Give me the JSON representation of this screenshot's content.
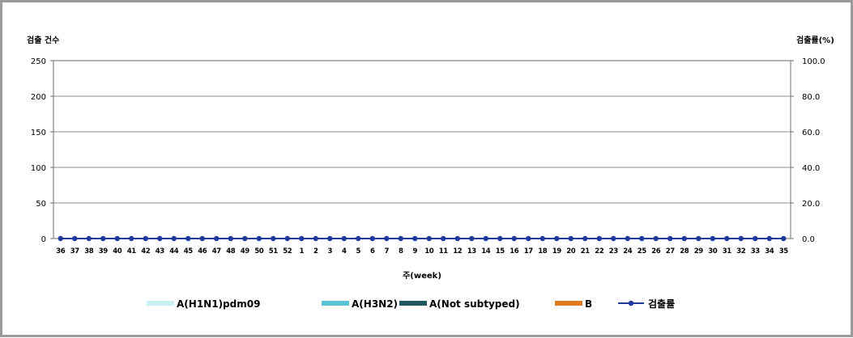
{
  "chart_data": {
    "type": "bar",
    "title": "",
    "ylabel_left": "검출 건수",
    "ylabel_right": "검출률(%)",
    "xlabel": "주(week)",
    "ylim_left": [
      0,
      250
    ],
    "ylim_right": [
      0,
      100
    ],
    "left_ticks": [
      "0",
      "50",
      "100",
      "150",
      "200",
      "250"
    ],
    "right_ticks": [
      "0.0",
      "20.0",
      "40.0",
      "60.0",
      "80.0",
      "100.0"
    ],
    "grid": true,
    "legend_position": "bottom",
    "categories": [
      "36",
      "37",
      "38",
      "39",
      "40",
      "41",
      "42",
      "43",
      "44",
      "45",
      "46",
      "47",
      "48",
      "49",
      "50",
      "51",
      "52",
      "1",
      "2",
      "3",
      "4",
      "5",
      "6",
      "7",
      "8",
      "9",
      "10",
      "11",
      "12",
      "13",
      "14",
      "15",
      "16",
      "17",
      "18",
      "19",
      "20",
      "21",
      "22",
      "23",
      "24",
      "25",
      "26",
      "27",
      "28",
      "29",
      "30",
      "31",
      "32",
      "33",
      "34",
      "35"
    ],
    "series": [
      {
        "name": "A(H1N1)pdm09",
        "kind": "bar",
        "axis": "left",
        "color": "#c9f0f2",
        "values": [
          0,
          0,
          0,
          0,
          0,
          0,
          0,
          0,
          0,
          0,
          0,
          0,
          0,
          0,
          0,
          0,
          0,
          0,
          0,
          0,
          0,
          0,
          0,
          0,
          0,
          0,
          0,
          0,
          0,
          0,
          0,
          0,
          0,
          0,
          0,
          0,
          0,
          0,
          0,
          0,
          0,
          0,
          0,
          0,
          0,
          0,
          0,
          0,
          0,
          0,
          0,
          0
        ]
      },
      {
        "name": "A(H3N2)",
        "kind": "bar",
        "axis": "left",
        "color": "#5bc3d6",
        "values": [
          0,
          0,
          0,
          0,
          0,
          0,
          0,
          0,
          0,
          0,
          0,
          0,
          0,
          0,
          0,
          0,
          0,
          0,
          0,
          0,
          0,
          0,
          0,
          0,
          0,
          0,
          0,
          0,
          0,
          0,
          0,
          0,
          0,
          0,
          0,
          0,
          0,
          0,
          0,
          0,
          0,
          0,
          0,
          0,
          0,
          0,
          0,
          0,
          0,
          0,
          0,
          0
        ]
      },
      {
        "name": "A(Not subtyped)",
        "kind": "bar",
        "axis": "left",
        "color": "#1f5661",
        "values": [
          0,
          0,
          0,
          0,
          0,
          0,
          0,
          0,
          0,
          0,
          0,
          0,
          0,
          0,
          0,
          0,
          0,
          0,
          0,
          0,
          0,
          0,
          0,
          0,
          0,
          0,
          0,
          0,
          0,
          0,
          0,
          0,
          0,
          0,
          0,
          0,
          0,
          0,
          0,
          0,
          0,
          0,
          0,
          0,
          0,
          0,
          0,
          0,
          0,
          0,
          0,
          0
        ]
      },
      {
        "name": "B",
        "kind": "bar",
        "axis": "left",
        "color": "#e07b22",
        "values": [
          0,
          0,
          0,
          0,
          0,
          0,
          0,
          0,
          0,
          0,
          0,
          0,
          0,
          0,
          0,
          0,
          0,
          0,
          0,
          0,
          0,
          0,
          0,
          0,
          0,
          0,
          0,
          0,
          0,
          0,
          0,
          0,
          0,
          0,
          0,
          0,
          0,
          0,
          0,
          0,
          0,
          0,
          0,
          0,
          0,
          0,
          0,
          0,
          0,
          0,
          0,
          0
        ]
      },
      {
        "name": "검출률",
        "kind": "line",
        "axis": "right",
        "color": "#1f3a9a",
        "values": [
          0,
          0,
          0,
          0,
          0,
          0,
          0,
          0,
          0,
          0,
          0,
          0,
          0,
          0,
          0,
          0,
          0,
          0,
          0,
          0,
          0,
          0,
          0,
          0,
          0,
          0,
          0,
          0,
          0,
          0,
          0,
          0,
          0,
          0,
          0,
          0,
          0,
          0,
          0,
          0,
          0,
          0,
          0,
          0,
          0,
          0,
          0,
          0,
          0,
          0,
          0,
          0
        ]
      }
    ]
  }
}
